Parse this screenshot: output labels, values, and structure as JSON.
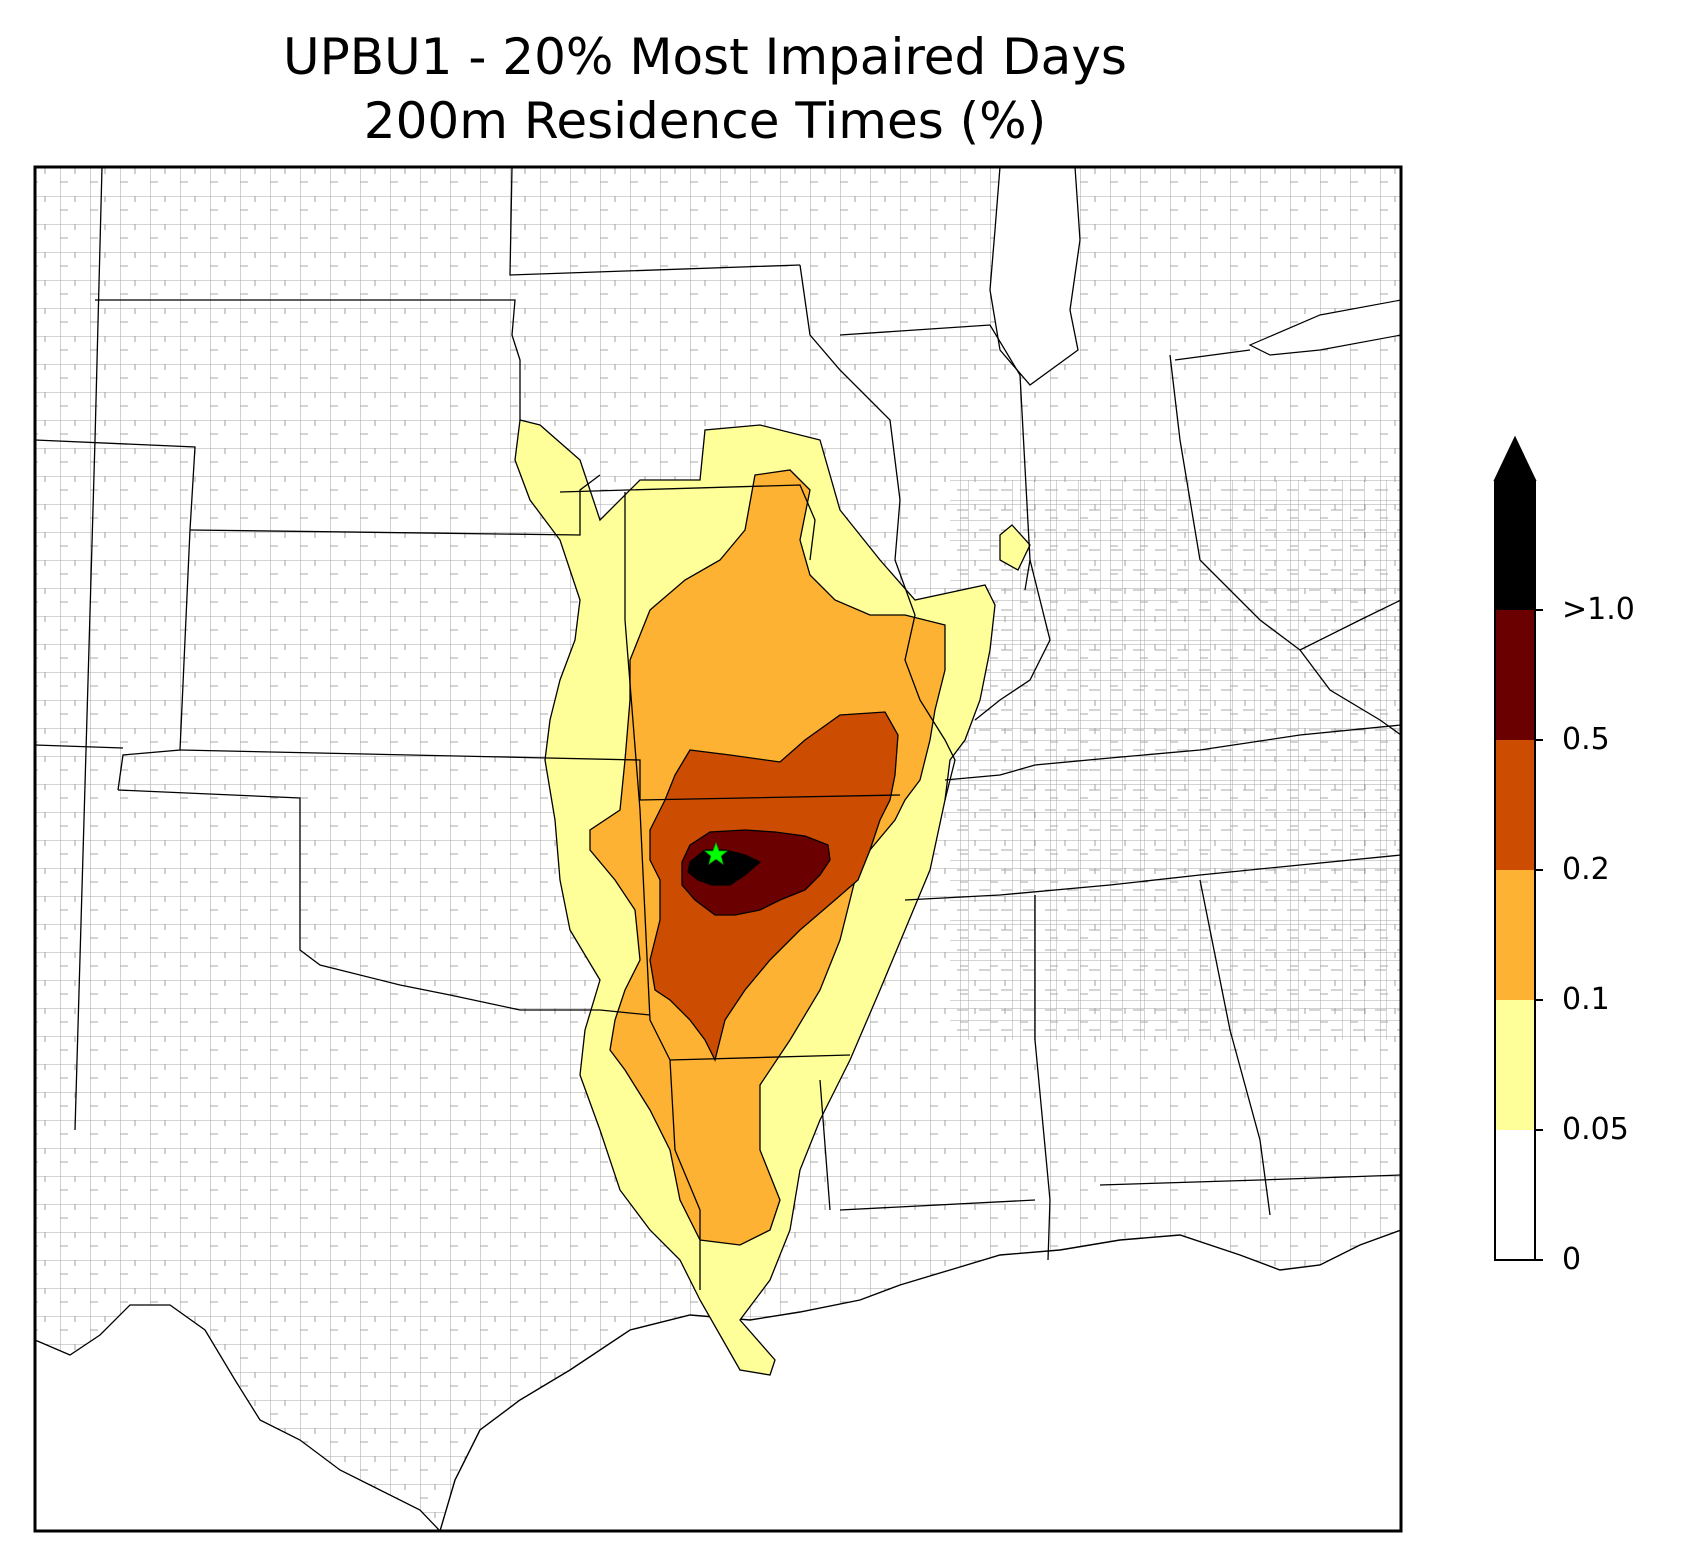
{
  "title_line1": "UPBU1 - 20% Most Impaired Days",
  "title_line2": "200m Residence Times (%)",
  "site_marker": {
    "label": "",
    "color": "#00ff00",
    "icon": "star-icon"
  },
  "colorbar": {
    "levels": [
      {
        "label": "0",
        "color": "#ffffff"
      },
      {
        "label": "0.05",
        "color": "#ffff99"
      },
      {
        "label": "0.1",
        "color": "#feb234"
      },
      {
        "label": "0.2",
        "color": "#cc4c02"
      },
      {
        "label": "0.5",
        "color": "#6b0000"
      },
      {
        "label": ">1.0",
        "color": "#000000"
      }
    ],
    "extend": "max"
  },
  "colors": {
    "state_border": "#000000",
    "county_border": "#a0a0a0",
    "band_005": "#ffff99",
    "band_01": "#feb234",
    "band_02": "#cc4c02",
    "band_05": "#6b0000",
    "band_1": "#000000"
  }
}
